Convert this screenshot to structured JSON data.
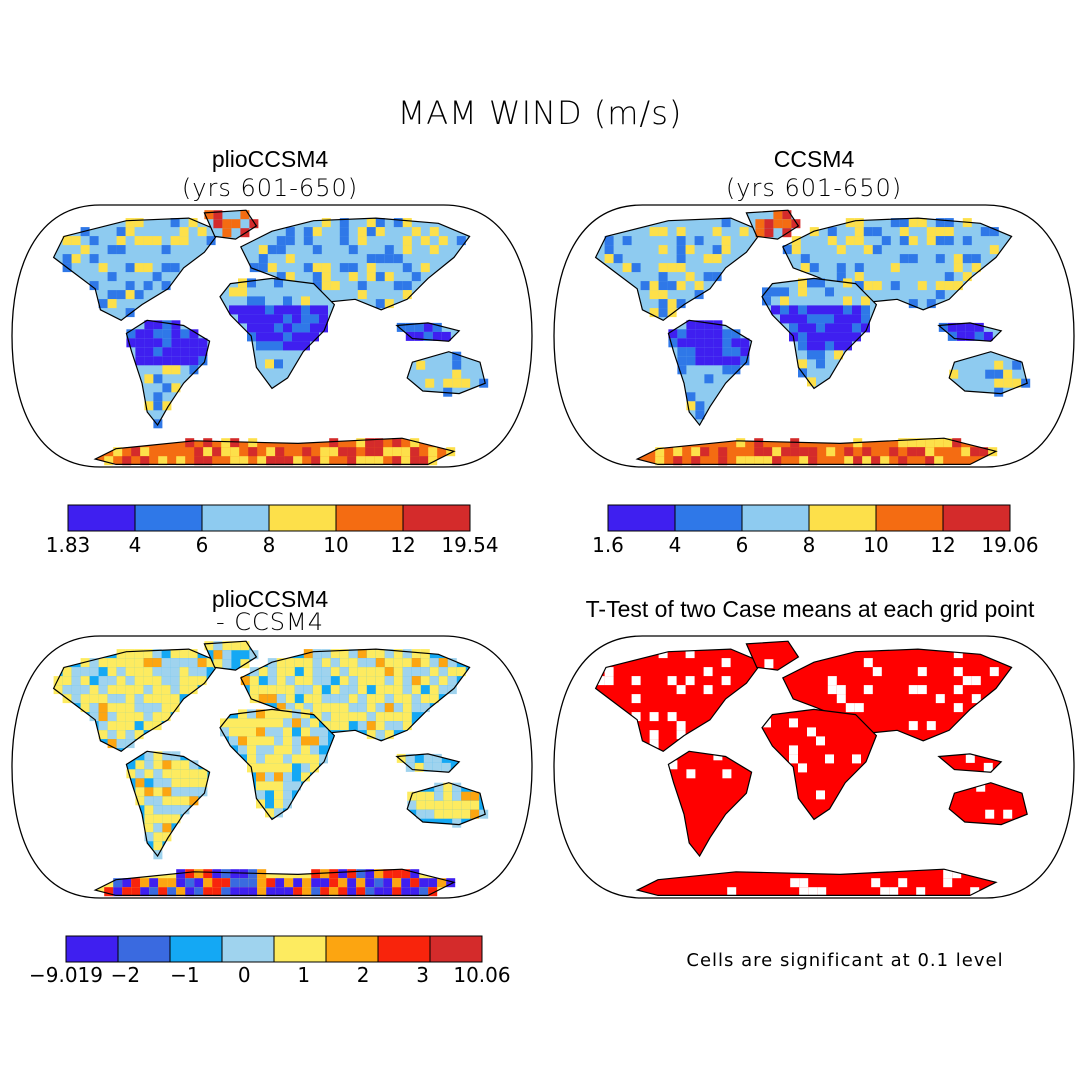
{
  "title": "MAM WIND (m/s)",
  "panels": [
    {
      "id": "plio",
      "title": "plioCCSM4",
      "subtitle": "(yrs 601-650)",
      "colorbar": {
        "colors": [
          "#3f1ff0",
          "#2f78e8",
          "#8ecbf0",
          "#fde04a",
          "#f46c12",
          "#d42b2b"
        ],
        "labels": [
          "1.83",
          "4",
          "6",
          "8",
          "10",
          "12",
          "19.54"
        ]
      }
    },
    {
      "id": "ccsm4",
      "title": "CCSM4",
      "subtitle": "(yrs 601-650)",
      "colorbar": {
        "colors": [
          "#3f1ff0",
          "#2f78e8",
          "#8ecbf0",
          "#fde04a",
          "#f46c12",
          "#d42b2b"
        ],
        "labels": [
          "1.6",
          "4",
          "6",
          "8",
          "10",
          "12",
          "19.06"
        ]
      }
    },
    {
      "id": "diff",
      "title": "plioCCSM4",
      "subtitle": "- CCSM4",
      "colorbar": {
        "colors": [
          "#3f1ff0",
          "#3a6ae0",
          "#14a8f4",
          "#9fd3ee",
          "#fdeb60",
          "#fca511",
          "#f8240c",
          "#d42b2b"
        ],
        "labels": [
          "-9.019",
          "-2",
          "-1",
          "0",
          "1",
          "2",
          "3",
          "10.06"
        ]
      }
    },
    {
      "id": "ttest",
      "title": "T-Test of two Case means at each grid point",
      "note": "Cells are significant at 0.1 level"
    }
  ],
  "colors": {
    "significant": "#ff0000",
    "outline": "#000000"
  }
}
